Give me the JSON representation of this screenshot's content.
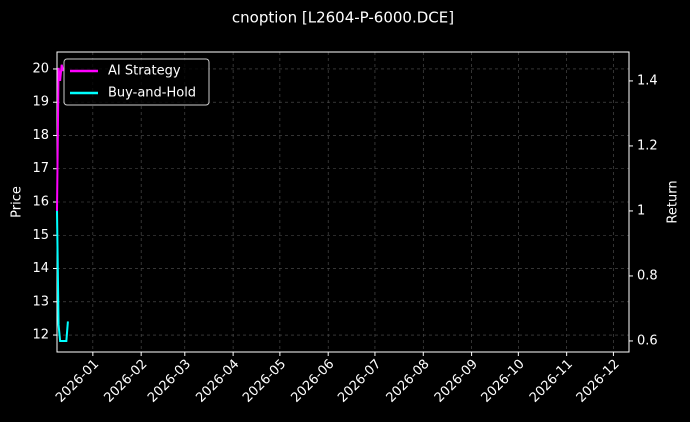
{
  "chart_data": {
    "type": "line",
    "title": "cnoption [L2604-P-6000.DCE]",
    "ylabel": "Price",
    "y2label": "Return",
    "x": [
      "2025-12-09",
      "2025-12-10",
      "2025-12-11",
      "2025-12-12",
      "2025-12-13",
      "2025-12-14",
      "2025-12-15",
      "2025-12-16"
    ],
    "series": [
      {
        "name": "AI Strategy",
        "color": "#ff00ff",
        "axis": "y2",
        "values": [
          1.0,
          1.44,
          1.4,
          1.45,
          1.43,
          null,
          null,
          null
        ]
      },
      {
        "name": "Buy-and-Hold",
        "color": "#00ffff",
        "axis": "y2",
        "values": [
          1.0,
          0.65,
          0.6,
          0.6,
          0.6,
          0.6,
          0.6,
          0.66
        ]
      }
    ],
    "xlim": [
      "2025-12-09",
      "2026-12-11"
    ],
    "xticks": [
      "2026-01",
      "2026-02",
      "2026-03",
      "2026-04",
      "2026-05",
      "2026-06",
      "2026-07",
      "2026-08",
      "2026-09",
      "2026-10",
      "2026-11",
      "2026-12"
    ],
    "ylim": [
      11.49,
      20.51
    ],
    "yticks": [
      12,
      13,
      14,
      15,
      16,
      17,
      18,
      19,
      20
    ],
    "y2lim": [
      0.566,
      1.489
    ],
    "y2ticks": [
      0.6,
      0.8,
      1.0,
      1.2,
      1.4
    ],
    "grid": true,
    "legend": "upper left"
  }
}
